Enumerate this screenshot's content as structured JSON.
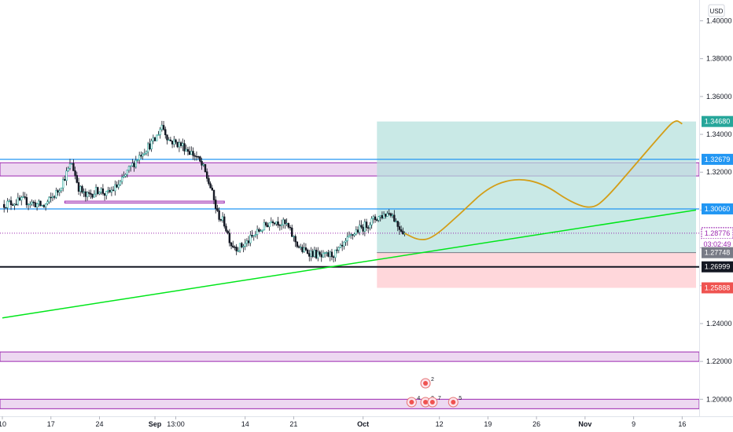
{
  "currency": "USD",
  "chart_data": {
    "type": "candlestick",
    "symbol_quote_currency": "USD",
    "y_range": [
      1.191,
      1.411
    ],
    "x_range": [
      "2020-08-10",
      "2020-11-18"
    ],
    "grid": false,
    "y_ticks": [
      "1.40000",
      "1.38000",
      "1.36000",
      "1.34000",
      "1.32000",
      "1.30000",
      "1.28000",
      "1.26000",
      "1.24000",
      "1.22000",
      "1.20000"
    ],
    "x_ticks": [
      {
        "label": "10",
        "date": "2020-08-10",
        "bold": false
      },
      {
        "label": "17",
        "date": "2020-08-17",
        "bold": false
      },
      {
        "label": "24",
        "date": "2020-08-24",
        "bold": false
      },
      {
        "label": "Sep",
        "date": "2020-09-01",
        "bold": true
      },
      {
        "label": "13:00",
        "date": "2020-09-04",
        "bold": false
      },
      {
        "label": "14",
        "date": "2020-09-14",
        "bold": false
      },
      {
        "label": "21",
        "date": "2020-09-21",
        "bold": false
      },
      {
        "label": "Oct",
        "date": "2020-10-01",
        "bold": true
      },
      {
        "label": "12",
        "date": "2020-10-12",
        "bold": false
      },
      {
        "label": "19",
        "date": "2020-10-19",
        "bold": false
      },
      {
        "label": "26",
        "date": "2020-10-26",
        "bold": false
      },
      {
        "label": "Nov",
        "date": "2020-11-02",
        "bold": true
      },
      {
        "label": "9",
        "date": "2020-11-09",
        "bold": false
      },
      {
        "label": "16",
        "date": "2020-11-16",
        "bold": false
      }
    ],
    "price_path": [
      [
        "2020-08-10",
        1.303
      ],
      [
        "2020-08-13",
        1.305
      ],
      [
        "2020-08-16",
        1.302
      ],
      [
        "2020-08-18",
        1.31
      ],
      [
        "2020-08-20",
        1.325
      ],
      [
        "2020-08-21",
        1.312
      ],
      [
        "2020-08-22",
        1.307
      ],
      [
        "2020-08-24",
        1.311
      ],
      [
        "2020-08-25",
        1.308
      ],
      [
        "2020-08-27",
        1.314
      ],
      [
        "2020-08-28",
        1.32
      ],
      [
        "2020-08-30",
        1.33
      ],
      [
        "2020-09-01",
        1.337
      ],
      [
        "2020-09-02",
        1.345
      ],
      [
        "2020-09-03",
        1.337
      ],
      [
        "2020-09-05",
        1.334
      ],
      [
        "2020-09-07",
        1.328
      ],
      [
        "2020-09-08",
        1.322
      ],
      [
        "2020-09-09",
        1.312
      ],
      [
        "2020-09-10",
        1.298
      ],
      [
        "2020-09-11",
        1.293
      ],
      [
        "2020-09-12",
        1.282
      ],
      [
        "2020-09-13",
        1.28
      ],
      [
        "2020-09-14",
        1.282
      ],
      [
        "2020-09-16",
        1.289
      ],
      [
        "2020-09-18",
        1.295
      ],
      [
        "2020-09-20",
        1.292
      ],
      [
        "2020-09-21",
        1.285
      ],
      [
        "2020-09-22",
        1.279
      ],
      [
        "2020-09-24",
        1.277
      ],
      [
        "2020-09-25",
        1.275
      ],
      [
        "2020-09-27",
        1.277
      ],
      [
        "2020-09-28",
        1.28
      ],
      [
        "2020-09-29",
        1.285
      ],
      [
        "2020-09-30",
        1.289
      ],
      [
        "2020-10-01",
        1.291
      ],
      [
        "2020-10-03",
        1.296
      ],
      [
        "2020-10-05",
        1.299
      ],
      [
        "2020-10-06",
        1.292
      ],
      [
        "2020-10-07",
        1.288
      ]
    ],
    "forecast_path": [
      [
        "2020-10-07",
        1.2877
      ],
      [
        "2020-10-09",
        1.284
      ],
      [
        "2020-10-11",
        1.285
      ],
      [
        "2020-10-15",
        1.298
      ],
      [
        "2020-10-19",
        1.312
      ],
      [
        "2020-10-23",
        1.317
      ],
      [
        "2020-10-27",
        1.314
      ],
      [
        "2020-10-31",
        1.304
      ],
      [
        "2020-11-03",
        1.3005
      ],
      [
        "2020-11-05",
        1.306
      ],
      [
        "2020-11-09",
        1.323
      ],
      [
        "2020-11-13",
        1.34
      ],
      [
        "2020-11-15",
        1.348
      ],
      [
        "2020-11-16",
        1.3455
      ]
    ],
    "trendline": {
      "start": [
        "2020-08-10",
        1.243
      ],
      "end": [
        "2020-11-18",
        1.3
      ]
    },
    "horizontal_lines": [
      {
        "value": 1.32679,
        "label": "1.32679",
        "color": "#2196f3"
      },
      {
        "value": 1.3006,
        "label": "1.30060",
        "color": "#2196f3"
      },
      {
        "value": 1.26999,
        "label": "1.26999",
        "color": "#131722"
      }
    ],
    "current_price": {
      "value": 1.28776,
      "label": "1.28776",
      "countdown": "03:02:49",
      "color": "#9c27b0"
    },
    "zones": [
      {
        "from": 1.318,
        "to": 1.325
      },
      {
        "from": 1.22,
        "to": 1.225
      },
      {
        "from": 1.195,
        "to": 1.2
      }
    ],
    "small_zone": {
      "from": 1.3037,
      "to": 1.3047,
      "start": "2020-08-19",
      "end": "2020-09-11"
    },
    "long_position": {
      "start": "2020-10-03",
      "end": "2020-11-18",
      "target": 1.3468,
      "entry": 1.27748,
      "stop": 1.25888,
      "target_label": "1.34680",
      "entry_label": "1.27748",
      "stop_label": "1.25888"
    },
    "events": [
      {
        "date": "2020-10-10",
        "count": "2",
        "row": "top"
      },
      {
        "date": "2020-10-08",
        "count": "4",
        "row": "bottom"
      },
      {
        "date": "2020-10-10",
        "count": "3",
        "row": "bottom"
      },
      {
        "date": "2020-10-11",
        "count": "7",
        "row": "bottom"
      },
      {
        "date": "2020-10-14",
        "count": "5",
        "row": "bottom"
      }
    ],
    "colors": {
      "up": "#26a69a",
      "down": "#131722",
      "forecast": "#d39e18",
      "trendline": "#00e61a",
      "level": "#2196f3",
      "zone": "#e1bee7",
      "zone_border": "#9c27b0",
      "profit": "#b2dfdb",
      "loss": "#ffcdd2",
      "axis_text": "#131722"
    }
  }
}
